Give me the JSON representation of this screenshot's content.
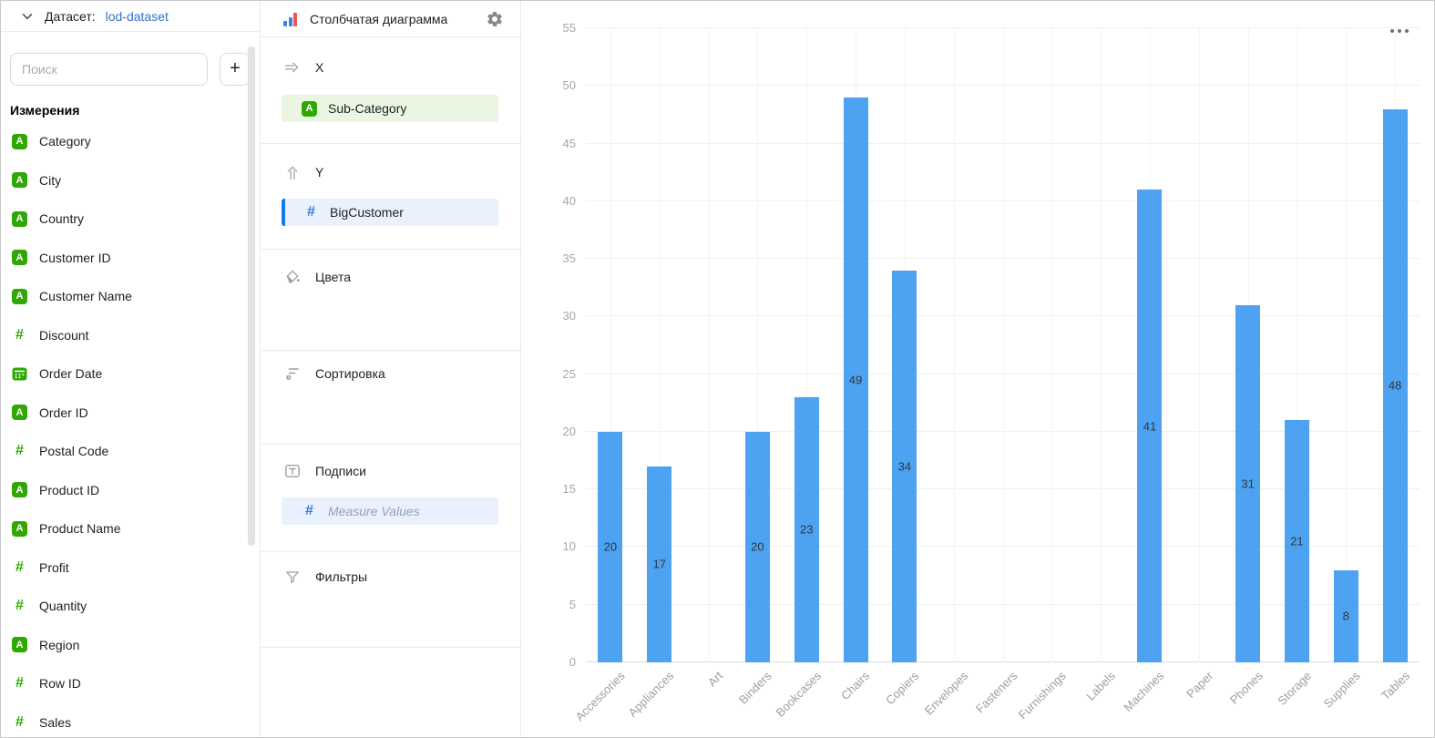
{
  "colors": {
    "bar": "#4DA2F1",
    "dimension_green": "#2FA805",
    "measure_blue": "#3B78D8",
    "accent_blue_bar": "#1478F0",
    "dataset_link_blue": "#3173C9",
    "chart_type_icon_blue": "#3B82E8",
    "chart_type_icon_red": "#F5524D"
  },
  "sidebar": {
    "dataset_label": "Датасет:",
    "dataset_name": "lod-dataset",
    "search_placeholder": "Поиск",
    "add_button_label": "+",
    "dimensions_title": "Измерения",
    "fields": [
      {
        "label": "Category",
        "type": "string"
      },
      {
        "label": "City",
        "type": "string"
      },
      {
        "label": "Country",
        "type": "string"
      },
      {
        "label": "Customer ID",
        "type": "string"
      },
      {
        "label": "Customer Name",
        "type": "string"
      },
      {
        "label": "Discount",
        "type": "number"
      },
      {
        "label": "Order Date",
        "type": "date"
      },
      {
        "label": "Order ID",
        "type": "string"
      },
      {
        "label": "Postal Code",
        "type": "number"
      },
      {
        "label": "Product ID",
        "type": "string"
      },
      {
        "label": "Product Name",
        "type": "string"
      },
      {
        "label": "Profit",
        "type": "number"
      },
      {
        "label": "Quantity",
        "type": "number"
      },
      {
        "label": "Region",
        "type": "string"
      },
      {
        "label": "Row ID",
        "type": "number"
      },
      {
        "label": "Sales",
        "type": "number"
      }
    ]
  },
  "config_panel": {
    "chart_type": "Столбчатая диаграмма",
    "sections": {
      "x": {
        "label": "X",
        "field": {
          "label": "Sub-Category",
          "type": "string"
        }
      },
      "y": {
        "label": "Y",
        "field": {
          "label": "BigCustomer",
          "type": "measure"
        }
      },
      "colors": {
        "label": "Цвета"
      },
      "sorting": {
        "label": "Сортировка"
      },
      "labels": {
        "label": "Подписи",
        "field": {
          "label": "Measure Values",
          "type": "measure",
          "placeholder": true
        }
      },
      "filters": {
        "label": "Фильтры"
      }
    }
  },
  "chart_data": {
    "type": "bar",
    "title": "",
    "xlabel": "",
    "ylabel": "",
    "categories": [
      "Accessories",
      "Appliances",
      "Art",
      "Binders",
      "Bookcases",
      "Chairs",
      "Copiers",
      "Envelopes",
      "Fasteners",
      "Furnishings",
      "Labels",
      "Machines",
      "Paper",
      "Phones",
      "Storage",
      "Supplies",
      "Tables"
    ],
    "values": [
      20,
      17,
      null,
      20,
      23,
      49,
      34,
      null,
      null,
      null,
      null,
      41,
      null,
      31,
      21,
      8,
      48
    ],
    "series_name": "BigCustomer",
    "ylim": [
      0,
      55
    ],
    "yticks": [
      0,
      5,
      10,
      15,
      20,
      25,
      30,
      35,
      40,
      45,
      50,
      55
    ],
    "grid": true,
    "data_labels": true,
    "legend": false
  }
}
